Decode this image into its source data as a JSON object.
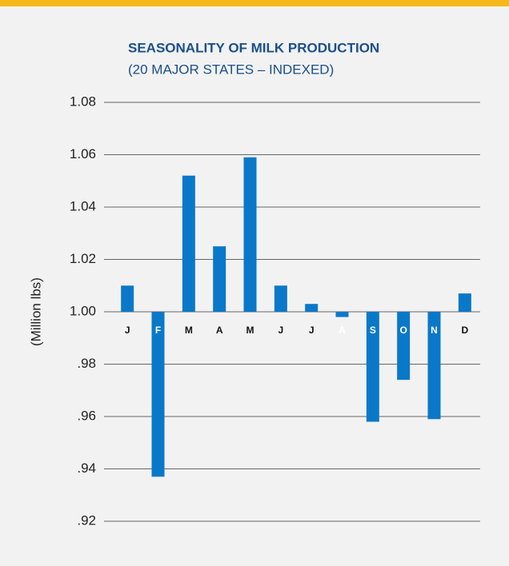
{
  "chart_data": {
    "type": "bar",
    "title": "SEASONALITY OF MILK PRODUCTION",
    "subtitle": "(20 MAJOR STATES – INDEXED)",
    "y_label": "(Million lbs)",
    "categories": [
      "J",
      "F",
      "M",
      "A",
      "M",
      "J",
      "J",
      "A",
      "S",
      "O",
      "N",
      "D"
    ],
    "values": [
      1.01,
      0.937,
      1.052,
      1.025,
      1.059,
      1.01,
      1.003,
      0.998,
      0.958,
      0.974,
      0.959,
      1.007
    ],
    "baseline": 1,
    "color": "#0a78c8",
    "ylim": [
      0.92,
      1.08
    ],
    "yticks": [
      {
        "value": 0.92,
        "label": ".92"
      },
      {
        "value": 0.94,
        "label": ".94"
      },
      {
        "value": 0.96,
        "label": ".96"
      },
      {
        "value": 0.98,
        "label": ".98"
      },
      {
        "value": 1,
        "label": "1.00"
      },
      1.02,
      1.04,
      1.06,
      1.08
    ],
    "grid": true
  }
}
